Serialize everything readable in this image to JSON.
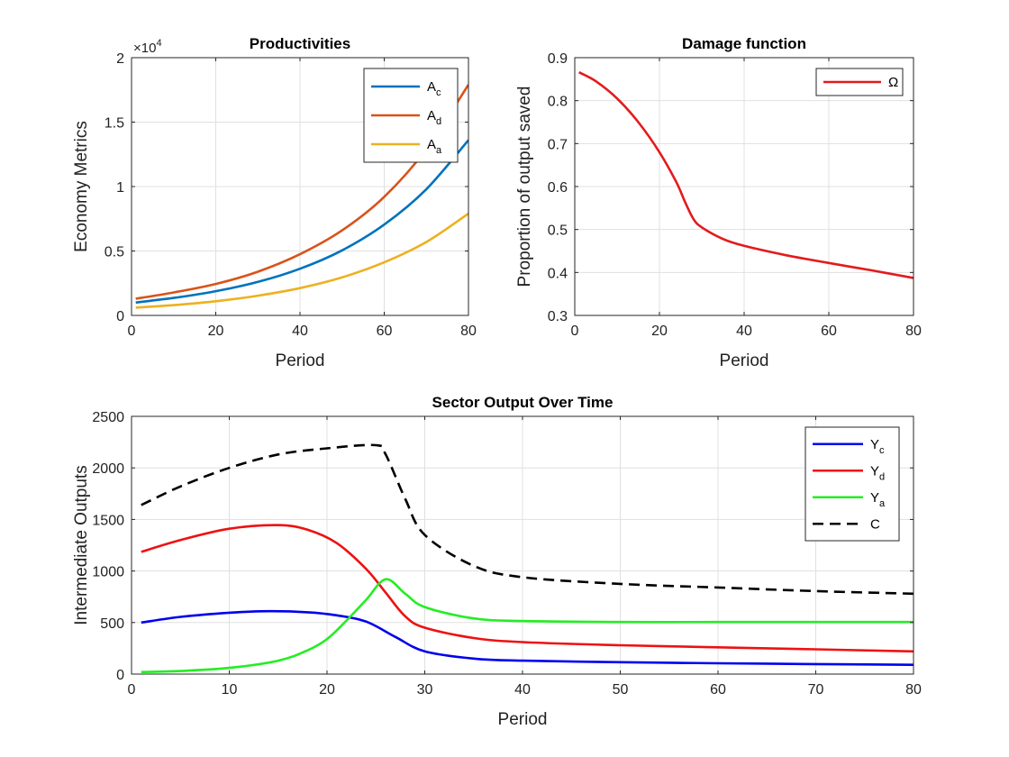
{
  "chart_data": [
    {
      "type": "line",
      "id": "productivities",
      "title": "Productivities",
      "xlabel": "Period",
      "ylabel": "Economy Metrics",
      "xlim": [
        0,
        80
      ],
      "ylim": [
        0,
        20000
      ],
      "xticks": [
        0,
        20,
        40,
        60,
        80
      ],
      "yticks": [
        0,
        5000,
        10000,
        15000,
        20000
      ],
      "ytick_labels": [
        "0",
        "0.5",
        "1",
        "1.5",
        "2"
      ],
      "y_multiplier": {
        "base": "×10",
        "exponent": "4"
      },
      "grid": true,
      "legend_position": "top-right",
      "series": [
        {
          "name": "A",
          "sub": "c",
          "color": "#0072BD",
          "x": [
            1,
            10,
            20,
            30,
            40,
            50,
            60,
            70,
            80
          ],
          "y": [
            1000,
            1360,
            1880,
            2600,
            3620,
            5050,
            7050,
            9800,
            13600
          ]
        },
        {
          "name": "A",
          "sub": "d",
          "color": "#D95319",
          "x": [
            1,
            10,
            20,
            30,
            40,
            50,
            60,
            70,
            80
          ],
          "y": [
            1300,
            1780,
            2440,
            3390,
            4750,
            6600,
            9200,
            12900,
            17900
          ]
        },
        {
          "name": "A",
          "sub": "a",
          "color": "#EDB120",
          "x": [
            1,
            10,
            20,
            30,
            40,
            50,
            60,
            70,
            80
          ],
          "y": [
            600,
            800,
            1100,
            1530,
            2120,
            2950,
            4120,
            5700,
            7900
          ]
        }
      ]
    },
    {
      "type": "line",
      "id": "damage",
      "title": "Damage function",
      "xlabel": "Period",
      "ylabel": "Proportion of output saved",
      "xlim": [
        0,
        80
      ],
      "ylim": [
        0.3,
        0.9
      ],
      "xticks": [
        0,
        20,
        40,
        60,
        80
      ],
      "yticks": [
        0.3,
        0.4,
        0.5,
        0.6,
        0.7,
        0.8,
        0.9
      ],
      "ytick_labels": [
        "0.3",
        "0.4",
        "0.5",
        "0.6",
        "0.7",
        "0.8",
        "0.9"
      ],
      "grid": true,
      "legend_position": "top-right",
      "series": [
        {
          "name": "Ω",
          "sub": "",
          "color": "#E41A1C",
          "x": [
            1,
            5,
            10,
            15,
            20,
            24,
            26,
            28,
            30,
            35,
            40,
            50,
            60,
            70,
            80
          ],
          "y": [
            0.866,
            0.845,
            0.805,
            0.75,
            0.68,
            0.61,
            0.565,
            0.525,
            0.505,
            0.478,
            0.462,
            0.44,
            0.422,
            0.405,
            0.387
          ]
        }
      ]
    },
    {
      "type": "line",
      "id": "sector-output",
      "title": "Sector Output Over Time",
      "xlabel": "Period",
      "ylabel": "Intermediate Outputs",
      "xlim": [
        0,
        80
      ],
      "ylim": [
        0,
        2500
      ],
      "xticks": [
        0,
        10,
        20,
        30,
        40,
        50,
        60,
        70,
        80
      ],
      "yticks": [
        0,
        500,
        1000,
        1500,
        2000,
        2500
      ],
      "ytick_labels": [
        "0",
        "500",
        "1000",
        "1500",
        "2000",
        "2500"
      ],
      "grid": true,
      "legend_position": "top-right",
      "series": [
        {
          "name": "Y",
          "sub": "c",
          "color": "#0000EE",
          "dash": false,
          "x": [
            1,
            5,
            10,
            14,
            18,
            21,
            24,
            27,
            30,
            35,
            40,
            50,
            60,
            70,
            80
          ],
          "y": [
            500,
            555,
            595,
            610,
            600,
            570,
            510,
            360,
            220,
            150,
            130,
            115,
            105,
            97,
            90
          ]
        },
        {
          "name": "Y",
          "sub": "d",
          "color": "#EE1111",
          "dash": false,
          "x": [
            1,
            5,
            10,
            15,
            18,
            21,
            24,
            26,
            28,
            30,
            35,
            40,
            50,
            60,
            70,
            80
          ],
          "y": [
            1185,
            1300,
            1410,
            1445,
            1400,
            1270,
            1020,
            790,
            560,
            450,
            350,
            310,
            280,
            260,
            240,
            220
          ]
        },
        {
          "name": "Y",
          "sub": "a",
          "color": "#22EE22",
          "dash": false,
          "x": [
            1,
            5,
            10,
            15,
            18,
            20,
            22,
            24,
            26,
            28,
            30,
            35,
            40,
            50,
            60,
            70,
            80
          ],
          "y": [
            20,
            30,
            60,
            130,
            230,
            340,
            520,
            720,
            920,
            780,
            650,
            540,
            515,
            505,
            505,
            505,
            505
          ]
        },
        {
          "name": "C",
          "sub": "",
          "color": "#000000",
          "dash": true,
          "x": [
            1,
            5,
            10,
            15,
            20,
            25,
            26,
            28,
            30,
            35,
            40,
            50,
            60,
            70,
            80
          ],
          "y": [
            1640,
            1820,
            2000,
            2130,
            2190,
            2220,
            2130,
            1700,
            1350,
            1050,
            940,
            875,
            840,
            805,
            780
          ]
        }
      ]
    }
  ]
}
